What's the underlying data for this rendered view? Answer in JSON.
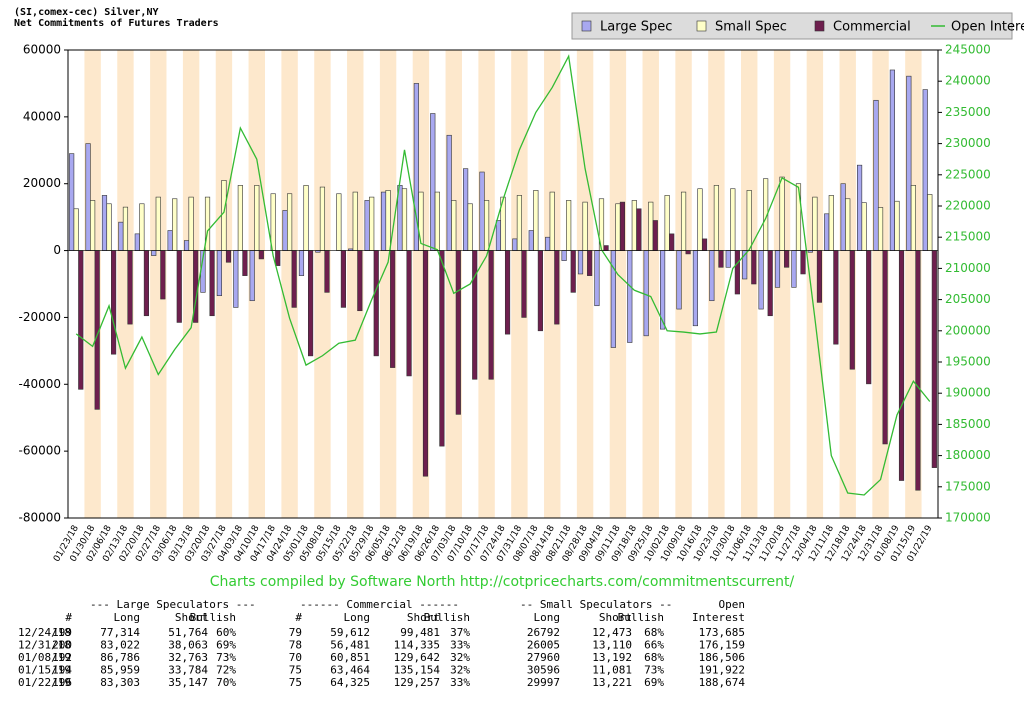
{
  "chart_data": {
    "type": "bar",
    "title": "(SI,comex-cec) Silver,NY",
    "subtitle": "Net Commitments of Futures Traders",
    "legend": "top-right",
    "categories": [
      "01/23/18",
      "01/30/18",
      "02/06/18",
      "02/13/18",
      "02/20/18",
      "02/27/18",
      "03/06/18",
      "03/13/18",
      "03/20/18",
      "03/27/18",
      "04/03/18",
      "04/10/18",
      "04/17/18",
      "04/24/18",
      "05/01/18",
      "05/08/18",
      "05/15/18",
      "05/22/18",
      "05/29/18",
      "06/05/18",
      "06/12/18",
      "06/19/18",
      "06/26/18",
      "07/03/18",
      "07/10/18",
      "07/17/18",
      "07/24/18",
      "07/31/18",
      "08/07/18",
      "08/14/18",
      "08/21/18",
      "08/28/18",
      "09/04/18",
      "09/11/18",
      "09/18/18",
      "09/25/18",
      "10/02/18",
      "10/09/18",
      "10/16/18",
      "10/23/18",
      "10/30/18",
      "11/06/18",
      "11/13/18",
      "11/20/18",
      "11/27/18",
      "12/04/18",
      "12/11/18",
      "12/18/18",
      "12/24/18",
      "12/31/18",
      "01/08/19",
      "01/15/19",
      "01/22/19"
    ],
    "series": [
      {
        "name": "Large Spec",
        "type": "bar",
        "color": "#a8a8f0",
        "values": [
          29000,
          32000,
          16500,
          8500,
          5000,
          -1500,
          6000,
          3000,
          -12500,
          -13500,
          -17000,
          -15000,
          0,
          12000,
          -7500,
          -500,
          0,
          500,
          15000,
          17500,
          19500,
          50000,
          41000,
          34500,
          24500,
          23500,
          9000,
          3500,
          6000,
          4000,
          -3000,
          -7000,
          -16500,
          -29000,
          -27500,
          -25500,
          -23500,
          -17500,
          -22500,
          -15000,
          -5000,
          -8500,
          -17500,
          -11000,
          -11000,
          -500,
          11000,
          20000,
          25550,
          44959,
          54023,
          52175,
          48156
        ]
      },
      {
        "name": "Small Spec",
        "type": "bar",
        "color": "#ffffc8",
        "values": [
          12500,
          15000,
          14000,
          13000,
          14000,
          16000,
          15500,
          16000,
          16000,
          21000,
          19500,
          19500,
          17000,
          17000,
          19500,
          19000,
          17000,
          17500,
          16000,
          18000,
          18500,
          17500,
          17500,
          15000,
          14000,
          15000,
          16000,
          16500,
          18000,
          17500,
          15000,
          14500,
          15500,
          14000,
          15000,
          14500,
          16500,
          17500,
          18500,
          19500,
          18500,
          18000,
          21500,
          22000,
          20000,
          16000,
          16500,
          15500,
          14319,
          12895,
          14768,
          19515,
          16776
        ]
      },
      {
        "name": "Commercial",
        "type": "bar",
        "color": "#6e1f4e",
        "values": [
          -41500,
          -47500,
          -31000,
          -22000,
          -19500,
          -14500,
          -21500,
          -21500,
          -19500,
          -3500,
          -7500,
          -2500,
          -4500,
          -17000,
          -31500,
          -12500,
          -17000,
          -18000,
          -31500,
          -35000,
          -37500,
          -67500,
          -58500,
          -49000,
          -38500,
          -38500,
          -25000,
          -20000,
          -24000,
          -22000,
          -12500,
          -7500,
          1500,
          14500,
          12500,
          9000,
          5000,
          -1000,
          3500,
          -5000,
          -13000,
          -10000,
          -19500,
          -5000,
          -7000,
          -15500,
          -28000,
          -35500,
          -39869,
          -57854,
          -68791,
          -71690,
          -64932
        ]
      },
      {
        "name": "Open Interest",
        "type": "line",
        "axis": "y2",
        "color": "#33bb33",
        "values": [
          199500,
          197500,
          204000,
          194000,
          199000,
          193000,
          197000,
          200500,
          216000,
          219000,
          232500,
          227500,
          212000,
          202000,
          194500,
          196000,
          198000,
          198500,
          205000,
          211000,
          229000,
          214000,
          213000,
          206000,
          207500,
          212000,
          221000,
          229000,
          235000,
          239000,
          244000,
          226000,
          213000,
          209000,
          206500,
          205500,
          200000,
          199800,
          199500,
          199800,
          210000,
          213000,
          218000,
          224500,
          223000,
          202000,
          180000,
          174000,
          173685,
          176159,
          186506,
          191922,
          188674
        ]
      }
    ],
    "ylim": [
      -80000,
      60000
    ],
    "yticks": [
      -80000,
      -60000,
      -40000,
      -20000,
      0,
      20000,
      40000,
      60000
    ],
    "y2lim": [
      170000,
      245000
    ],
    "y2ticks": [
      170000,
      175000,
      180000,
      185000,
      190000,
      195000,
      200000,
      205000,
      210000,
      215000,
      220000,
      225000,
      230000,
      235000,
      240000,
      245000
    ],
    "band_color": "#fde8cc",
    "footer": "Charts compiled by Software North  http://cotpricecharts.com/commitmentscurrent/",
    "table": {
      "group_headers": [
        "--- Large Speculators ---",
        "------ Commercial ------",
        "-- Small Speculators --",
        "Open"
      ],
      "columns": [
        "#",
        "Long",
        "Short",
        "Bullish",
        "#",
        "Long",
        "Short",
        "Bullish",
        "Long",
        "Short",
        "Bullish",
        "Interest"
      ],
      "rows": [
        [
          "12/24/18",
          "199",
          "77,314",
          "51,764",
          "60%",
          "79",
          "59,612",
          "99,481",
          "37%",
          "26792",
          "12,473",
          "68%",
          "173,685"
        ],
        [
          "12/31/18",
          "200",
          "83,022",
          "38,063",
          "69%",
          "78",
          "56,481",
          "114,335",
          "33%",
          "26005",
          "13,110",
          "66%",
          "176,159"
        ],
        [
          "01/08/19",
          "192",
          "86,786",
          "32,763",
          "73%",
          "70",
          "60,851",
          "129,642",
          "32%",
          "27960",
          "13,192",
          "68%",
          "186,506"
        ],
        [
          "01/15/19",
          "194",
          "85,959",
          "33,784",
          "72%",
          "75",
          "63,464",
          "135,154",
          "32%",
          "30596",
          "11,081",
          "73%",
          "191,922"
        ],
        [
          "01/22/19",
          "196",
          "83,303",
          "35,147",
          "70%",
          "75",
          "64,325",
          "129,257",
          "33%",
          "29997",
          "13,221",
          "69%",
          "188,674"
        ]
      ]
    }
  }
}
